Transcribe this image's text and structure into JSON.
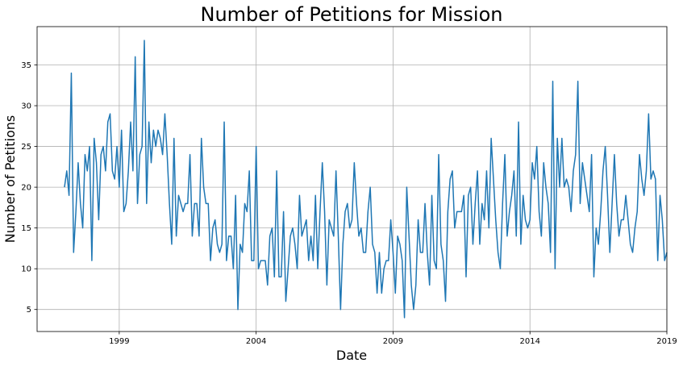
{
  "chart_data": {
    "type": "line",
    "title": "Number of Petitions for Mission",
    "xlabel": "Date",
    "ylabel": "Number of Petitions",
    "x_start": "1997-01",
    "x_step": "month",
    "xlim": [
      "1996-01",
      "2019-01"
    ],
    "ylim": [
      2.3,
      39.7
    ],
    "x_ticks": [
      {
        "date": "1999-01",
        "label": "1999"
      },
      {
        "date": "2004-01",
        "label": "2004"
      },
      {
        "date": "2009-01",
        "label": "2009"
      },
      {
        "date": "2014-01",
        "label": "2014"
      },
      {
        "date": "2019-01",
        "label": "2019"
      }
    ],
    "y_ticks": [
      5,
      10,
      15,
      20,
      25,
      30,
      35
    ],
    "grid": true,
    "legend": false,
    "series": [
      {
        "color": "#1f77b4",
        "values": [
          20,
          22,
          19,
          34,
          12,
          17,
          23,
          18,
          15,
          24,
          22,
          25,
          11,
          26,
          23,
          16,
          24,
          25,
          22,
          28,
          29,
          22,
          21,
          25,
          20,
          27,
          17,
          18,
          22,
          28,
          22,
          36,
          18,
          24,
          25,
          38,
          18,
          28,
          23,
          27,
          25,
          27,
          26,
          24,
          29,
          24,
          18,
          13,
          26,
          14,
          19,
          18,
          17,
          18,
          18,
          24,
          14,
          18,
          18,
          14,
          26,
          20,
          18,
          18,
          11,
          15,
          16,
          13,
          12,
          13,
          28,
          11,
          14,
          14,
          10,
          19,
          5,
          13,
          12,
          18,
          17,
          22,
          11,
          11,
          25,
          10,
          11,
          11,
          11,
          8,
          14,
          15,
          9,
          22,
          9,
          9,
          17,
          6,
          10,
          14,
          15,
          13,
          10,
          19,
          14,
          15,
          16,
          11,
          14,
          11,
          19,
          10,
          17,
          23,
          17,
          8,
          16,
          15,
          14,
          22,
          14,
          5,
          13,
          17,
          18,
          15,
          16,
          23,
          18,
          14,
          15,
          12,
          12,
          17,
          20,
          13,
          12,
          7,
          12,
          7,
          10,
          11,
          11,
          16,
          12,
          7,
          14,
          13,
          11,
          4,
          20,
          14,
          8,
          5,
          8,
          16,
          12,
          12,
          18,
          12,
          8,
          19,
          11,
          10,
          24,
          13,
          11,
          6,
          17,
          21,
          22,
          15,
          17,
          17,
          17,
          19,
          9,
          19,
          20,
          13,
          18,
          22,
          13,
          18,
          16,
          22,
          15,
          26,
          21,
          16,
          12,
          10,
          18,
          24,
          14,
          17,
          19,
          22,
          14,
          28,
          13,
          19,
          16,
          15,
          16,
          23,
          21,
          25,
          17,
          14,
          23,
          20,
          18,
          12,
          33,
          10,
          26,
          20,
          26,
          20,
          21,
          20,
          17,
          22,
          24,
          33,
          18,
          23,
          21,
          19,
          17,
          24,
          9,
          15,
          13,
          17,
          22,
          25,
          19,
          12,
          18,
          24,
          18,
          14,
          16,
          16,
          19,
          16,
          13,
          12,
          15,
          17,
          24,
          21,
          19,
          22,
          29,
          21,
          22,
          21,
          11,
          19,
          16,
          11,
          12
        ]
      }
    ]
  }
}
